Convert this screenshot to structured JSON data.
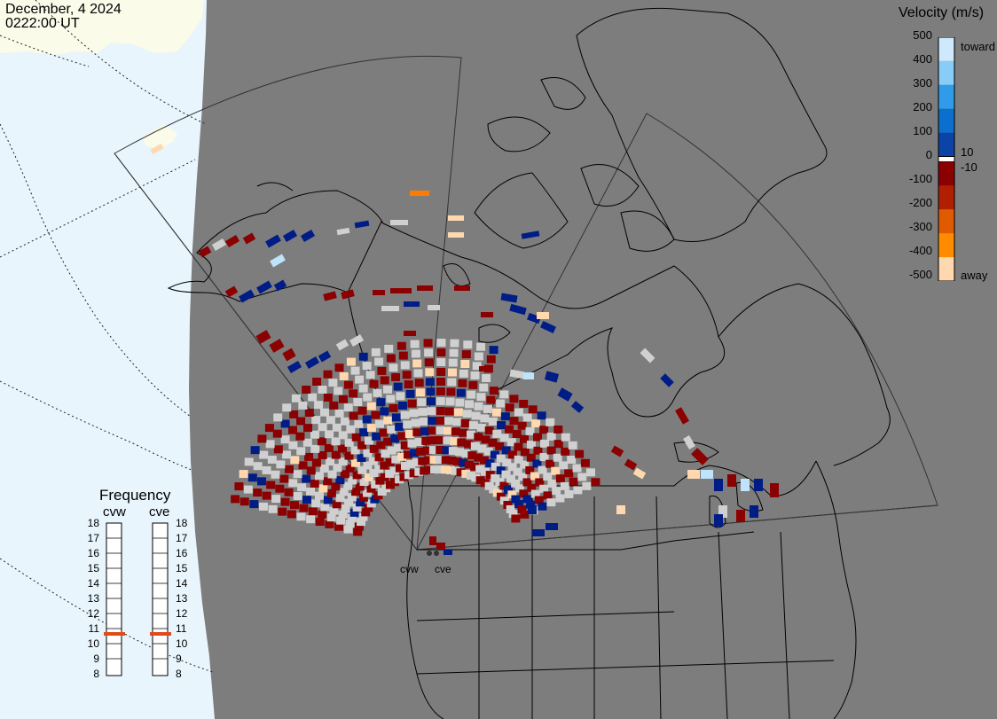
{
  "header": {
    "date": "December, 4 2024",
    "time": "0222:00 UT"
  },
  "colorbar": {
    "title": "Velocity (m/s)",
    "ticks": [
      "500",
      "400",
      "300",
      "200",
      "100",
      "0",
      "-100",
      "-200",
      "-300",
      "-400",
      "-500"
    ],
    "label_10": "10",
    "label_neg10": "-10",
    "toward_label": "toward",
    "away_label": "away",
    "colors_top_to_bottom": [
      "#cde9fb",
      "#87cdf7",
      "#2f9be9",
      "#0b6fce",
      "#0b44a6",
      "#001c86",
      "#ffffff",
      "#8b0000",
      "#b02000",
      "#e05a00",
      "#ff8c00",
      "#ffd8b0"
    ]
  },
  "frequency_panel": {
    "title": "Frequency",
    "radars": [
      {
        "name": "cvw",
        "frequency_mhz": 11
      },
      {
        "name": "cve",
        "frequency_mhz": 11
      }
    ],
    "scale": [
      "18",
      "17",
      "16",
      "15",
      "14",
      "13",
      "12",
      "11",
      "10",
      "9",
      "8"
    ],
    "marker_color": "#e04b1a"
  },
  "sites": {
    "cvw_label": "cvw",
    "cve_label": "cve"
  },
  "colors": {
    "land": "#7d7d7d",
    "ocean_day": "#e8f5fd",
    "land_day": "#fafbe8",
    "gray_scatter": "#d0d0d0"
  }
}
